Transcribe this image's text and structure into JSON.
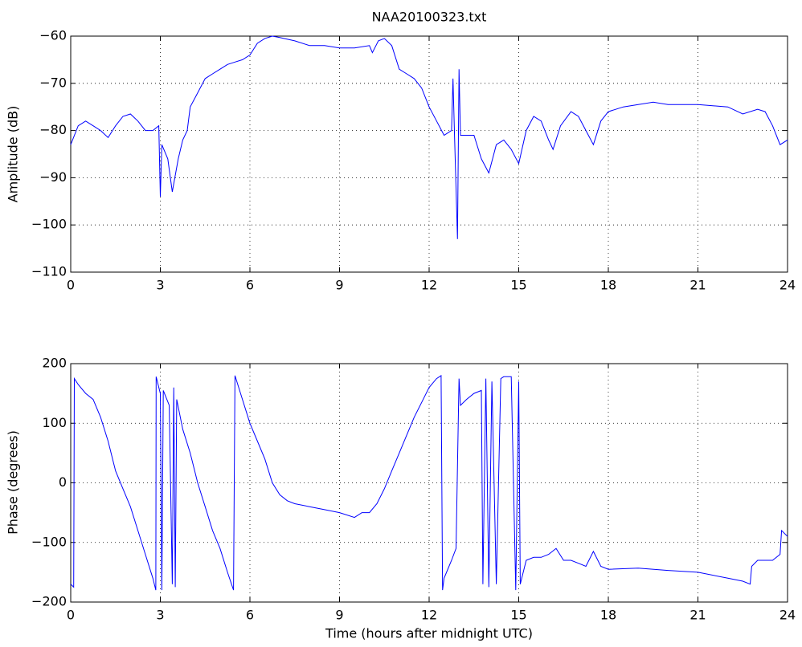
{
  "chart_data": [
    {
      "type": "line",
      "title": "NAA20100323.txt",
      "ylabel": "Amplitude (dB)",
      "color": "#0000ff",
      "grid": true,
      "xlim": [
        0,
        24
      ],
      "xticks": [
        0,
        3,
        6,
        9,
        12,
        15,
        18,
        21,
        24
      ],
      "ylim": [
        -110,
        -60
      ],
      "yticks": [
        {
          "value": -110,
          "label": "−110"
        },
        {
          "value": -100,
          "label": "−100"
        },
        {
          "value": -90,
          "label": "−90"
        },
        {
          "value": -80,
          "label": "−80"
        },
        {
          "value": -70,
          "label": "−70"
        },
        {
          "value": -60,
          "label": "−60"
        }
      ],
      "x": [
        0,
        0.25,
        0.5,
        0.75,
        1,
        1.25,
        1.5,
        1.75,
        2,
        2.25,
        2.5,
        2.75,
        2.95,
        3,
        3.05,
        3.25,
        3.4,
        3.6,
        3.75,
        3.9,
        4,
        4.25,
        4.5,
        4.75,
        5,
        5.25,
        5.5,
        5.75,
        6,
        6.25,
        6.5,
        6.75,
        7,
        7.5,
        8,
        8.5,
        9,
        9.5,
        10,
        10.1,
        10.3,
        10.5,
        10.75,
        11,
        11.25,
        11.5,
        11.75,
        12,
        12.25,
        12.5,
        12.75,
        12.8,
        12.85,
        12.95,
        13,
        13.05,
        13.25,
        13.5,
        13.75,
        14,
        14.25,
        14.5,
        14.75,
        15,
        15.25,
        15.5,
        15.75,
        16,
        16.15,
        16.4,
        16.75,
        17,
        17.25,
        17.5,
        17.75,
        18,
        18.5,
        19,
        19.5,
        20,
        21,
        22,
        22.5,
        23,
        23.25,
        23.5,
        23.75,
        24
      ],
      "values": [
        -83,
        -79,
        -78,
        -79,
        -80,
        -81.5,
        -79,
        -77,
        -76.5,
        -78,
        -80,
        -80,
        -79,
        -94,
        -83,
        -86,
        -93,
        -86,
        -82,
        -80,
        -75,
        -72,
        -69,
        -68,
        -67,
        -66,
        -65.5,
        -65,
        -64,
        -61.5,
        -60.5,
        -60,
        -60.3,
        -61,
        -62,
        -62,
        -62.5,
        -62.5,
        -62,
        -63.5,
        -61,
        -60.5,
        -62,
        -67,
        -68,
        -69,
        -71,
        -75,
        -78,
        -81,
        -80,
        -69,
        -81,
        -103,
        -67,
        -81,
        -81,
        -81,
        -86,
        -89,
        -83,
        -82,
        -84,
        -87,
        -80,
        -77,
        -78,
        -82,
        -84,
        -79,
        -76,
        -77,
        -80,
        -83,
        -78,
        -76,
        -75,
        -74.5,
        -74,
        -74.5,
        -74.5,
        -75,
        -76.5,
        -75.5,
        -76,
        -79,
        -83,
        -82
      ]
    },
    {
      "type": "line",
      "xlabel": "Time (hours after midnight UTC)",
      "ylabel": "Phase (degrees)",
      "color": "#0000ff",
      "grid": true,
      "xlim": [
        0,
        24
      ],
      "xticks": [
        0,
        3,
        6,
        9,
        12,
        15,
        18,
        21,
        24
      ],
      "ylim": [
        -200,
        200
      ],
      "yticks": [
        {
          "value": -200,
          "label": "−200"
        },
        {
          "value": -100,
          "label": "−100"
        },
        0,
        100,
        200
      ],
      "x": [
        0,
        0.1,
        0.12,
        0.25,
        0.5,
        0.75,
        1,
        1.25,
        1.5,
        1.75,
        2,
        2.25,
        2.5,
        2.75,
        2.85,
        2.86,
        3,
        3.05,
        3.1,
        3.3,
        3.4,
        3.45,
        3.5,
        3.55,
        3.75,
        4,
        4.25,
        4.5,
        4.75,
        5,
        5.25,
        5.45,
        5.5,
        5.75,
        6,
        6.25,
        6.5,
        6.75,
        7,
        7.25,
        7.5,
        8,
        8.5,
        9,
        9.5,
        9.75,
        10,
        10.25,
        10.5,
        10.75,
        11,
        11.25,
        11.5,
        11.75,
        12,
        12.25,
        12.4,
        12.45,
        12.5,
        12.75,
        12.9,
        13,
        13.05,
        13.25,
        13.5,
        13.75,
        13.8,
        13.9,
        14,
        14.1,
        14.25,
        14.4,
        14.5,
        14.75,
        14.9,
        15,
        15.05,
        15.25,
        15.5,
        15.75,
        16,
        16.25,
        16.5,
        16.75,
        17,
        17.25,
        17.5,
        17.75,
        18,
        19,
        20,
        21,
        22,
        22.5,
        22.75,
        22.8,
        23,
        23.5,
        23.75,
        23.8,
        24
      ],
      "values": [
        -170,
        -175,
        175,
        165,
        150,
        140,
        110,
        70,
        20,
        -10,
        -40,
        -80,
        -120,
        -160,
        -180,
        178,
        150,
        -180,
        155,
        130,
        -170,
        160,
        -175,
        140,
        90,
        50,
        0,
        -40,
        -80,
        -110,
        -150,
        -180,
        180,
        140,
        100,
        70,
        40,
        0,
        -20,
        -30,
        -35,
        -40,
        -45,
        -50,
        -58,
        -50,
        -50,
        -35,
        -10,
        20,
        50,
        80,
        110,
        135,
        160,
        175,
        180,
        -180,
        -160,
        -130,
        -110,
        175,
        130,
        140,
        150,
        155,
        -170,
        175,
        -175,
        170,
        -170,
        175,
        178,
        178,
        -180,
        170,
        -170,
        -130,
        -125,
        -125,
        -120,
        -110,
        -130,
        -130,
        -135,
        -140,
        -115,
        -140,
        -145,
        -143,
        -147,
        -150,
        -160,
        -165,
        -170,
        -140,
        -130,
        -130,
        -120,
        -80,
        -90
      ]
    }
  ]
}
